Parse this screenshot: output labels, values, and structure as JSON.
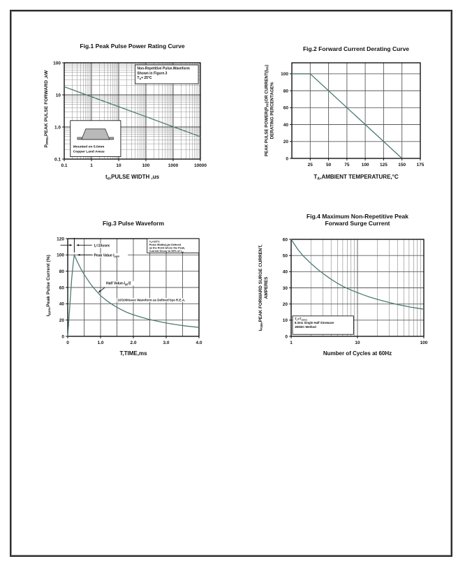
{
  "page": {
    "background": "#ffffff",
    "frame_color": "#2e2e2e",
    "curve_color": "#4e7a74"
  },
  "chart_data": [
    {
      "id": "fig1",
      "type": "line",
      "title": "Fig.1  Peak Pulse Power Rating Curve",
      "xlabel": "t_{d},PULSE WIDTH ,us",
      "ylabel": "P_{PPM},PEAK PULSE FORWARD ,kW",
      "x_scale": "log",
      "y_scale": "log",
      "xlim": [
        0.1,
        10000
      ],
      "ylim": [
        0.1,
        100
      ],
      "x_ticks": {
        "values": [
          0.1,
          1,
          10,
          100,
          1000,
          10000
        ],
        "labels": [
          "0.1",
          "1",
          "10",
          "100",
          "1000",
          "10000"
        ]
      },
      "y_ticks": {
        "values": [
          0.1,
          1,
          10,
          100
        ],
        "labels": [
          "0.1",
          "1.0",
          "10",
          "100"
        ]
      },
      "grid": true,
      "series": [
        {
          "name": "peak-pulse-power",
          "color": "#4e7a74",
          "points": [
            [
              0.1,
              18
            ],
            [
              1,
              8.8
            ],
            [
              10,
              4.3
            ],
            [
              100,
              2.1
            ],
            [
              1000,
              1.02
            ],
            [
              10000,
              0.5
            ]
          ]
        }
      ],
      "annotations": {
        "note_lines": [
          "Non-Repetitive  Pulse.Waveform",
          "Shown in Figure.3",
          "T_{A}= 25°C"
        ],
        "inset_lines": [
          "Mounted on 5.0mm",
          "Copper Land Areas"
        ],
        "inset_icon": "smd-package-icon"
      }
    },
    {
      "id": "fig2",
      "type": "line",
      "title": "Fig.2  Forward Current Derating Curve",
      "xlabel": "T_{A},AMBIENT TEMPERATURE,°C",
      "ylabel": "PEAK PULSE POWER(P_{PP})OR CURRENT(I_{PP})\nDERATING PERCENTAGE%",
      "x_scale": "linear",
      "y_scale": "linear",
      "xlim": [
        0,
        175
      ],
      "ylim": [
        0,
        113
      ],
      "x_grid_step": 25,
      "y_grid_step": 20,
      "x_ticks": {
        "values": [
          25,
          50,
          75,
          100,
          125,
          150,
          175
        ],
        "labels": [
          "25",
          "50",
          "75",
          "100",
          "125",
          "150",
          "175"
        ]
      },
      "y_ticks": {
        "values": [
          0,
          20,
          40,
          60,
          80,
          100
        ],
        "labels": [
          "0",
          "20",
          "40",
          "60",
          "80",
          "100"
        ]
      },
      "grid": true,
      "series": [
        {
          "name": "derating-percentage",
          "color": "#4e7a74",
          "points": [
            [
              0,
              100
            ],
            [
              25,
              100
            ],
            [
              150,
              0
            ]
          ]
        }
      ],
      "annotations": {}
    },
    {
      "id": "fig3",
      "type": "line",
      "title": "Fig.3  Pulse Waveform",
      "xlabel": "T,TIME,ms",
      "ylabel": "I_{ppm},Peak Pulse Current (%)",
      "x_scale": "linear",
      "y_scale": "linear",
      "xlim": [
        0,
        4
      ],
      "ylim": [
        0,
        120
      ],
      "x_grid_step": 0.5,
      "y_grid_step": 20,
      "x_ticks": {
        "values": [
          0,
          1,
          2,
          3,
          4
        ],
        "labels": [
          "0",
          "1.0",
          "2.0",
          "3.0",
          "4.0"
        ]
      },
      "y_ticks": {
        "values": [
          0,
          20,
          40,
          60,
          80,
          100,
          120
        ],
        "labels": [
          "0",
          "20",
          "40",
          "60",
          "80",
          "100",
          "120"
        ]
      },
      "grid": true,
      "series": [
        {
          "name": "pulse-waveform",
          "color": "#4e7a74",
          "points": [
            [
              0,
              0
            ],
            [
              0.06,
              35
            ],
            [
              0.12,
              70
            ],
            [
              0.17,
              91
            ],
            [
              0.2,
              100
            ],
            [
              0.3,
              91
            ],
            [
              0.4,
              83
            ],
            [
              0.5,
              76
            ],
            [
              0.6,
              70
            ],
            [
              0.7,
              64
            ],
            [
              0.8,
              59
            ],
            [
              0.9,
              54.5
            ],
            [
              1.0,
              50
            ],
            [
              1.2,
              43.5
            ],
            [
              1.4,
              38
            ],
            [
              1.6,
              33.5
            ],
            [
              1.8,
              29.5
            ],
            [
              2.0,
              26.5
            ],
            [
              2.2,
              24
            ],
            [
              2.4,
              21.7
            ],
            [
              2.6,
              19.7
            ],
            [
              2.8,
              18
            ],
            [
              3.0,
              16.4
            ],
            [
              3.2,
              15
            ],
            [
              3.4,
              13.8
            ],
            [
              3.6,
              12.7
            ],
            [
              3.8,
              11.8
            ],
            [
              4.0,
              11
            ]
          ]
        }
      ],
      "annotations": {
        "rise_time_label": "t_{r}=10usec",
        "peak_label": "Peak  Value  I_{ppm}",
        "half_label": "Half  Value-I_{pp}/2",
        "waveform_note": "10/1000usec  Waveform as Defined bye R.E.A.",
        "note_lines": [
          "T_{A}=25°C",
          "Pulse  Width(t_{d})is  Defined",
          "as the Point where the Peak,",
          "Current  Decay to 50% of I_{pp}"
        ]
      }
    },
    {
      "id": "fig4",
      "type": "line",
      "title": "Fig.4  Maximum Non-Repetitive Peak\nForward Surge Current",
      "xlabel": "Number of Cycles at 60Hz",
      "ylabel": "I_{FSM},PEAK FORWARD SURGE CURRENT,\nAMPERES",
      "x_scale": "log",
      "y_scale": "linear",
      "xlim": [
        1,
        100
      ],
      "ylim": [
        0,
        60
      ],
      "y_grid_step": 10,
      "x_ticks": {
        "values": [
          1,
          10,
          100
        ],
        "labels": [
          "1",
          "10",
          "100"
        ]
      },
      "y_ticks": {
        "values": [
          0,
          10,
          20,
          30,
          40,
          50,
          60
        ],
        "labels": [
          "0",
          "10",
          "20",
          "30",
          "40",
          "50",
          "60"
        ]
      },
      "grid": true,
      "series": [
        {
          "name": "surge-current",
          "color": "#4e7a74",
          "points": [
            [
              1,
              60
            ],
            [
              1.25,
              54
            ],
            [
              1.5,
              50
            ],
            [
              1.75,
              47.3
            ],
            [
              2,
              45
            ],
            [
              2.5,
              41.5
            ],
            [
              3,
              39
            ],
            [
              3.5,
              37
            ],
            [
              4,
              35.3
            ],
            [
              5,
              32.8
            ],
            [
              6,
              31
            ],
            [
              7,
              29.7
            ],
            [
              8,
              28.6
            ],
            [
              10,
              27
            ],
            [
              12,
              25.8
            ],
            [
              15,
              24.4
            ],
            [
              18,
              23.4
            ],
            [
              22,
              22.4
            ],
            [
              27,
              21.4
            ],
            [
              33,
              20.5
            ],
            [
              40,
              19.7
            ],
            [
              50,
              18.9
            ],
            [
              63,
              18.1
            ],
            [
              80,
              17.4
            ],
            [
              100,
              16.8
            ]
          ]
        }
      ],
      "annotations": {
        "note_lines": [
          "T_{J}=T_{JMAX}",
          "8.3ms Single Half  Sinewave",
          "JEDEC Method"
        ]
      }
    }
  ]
}
